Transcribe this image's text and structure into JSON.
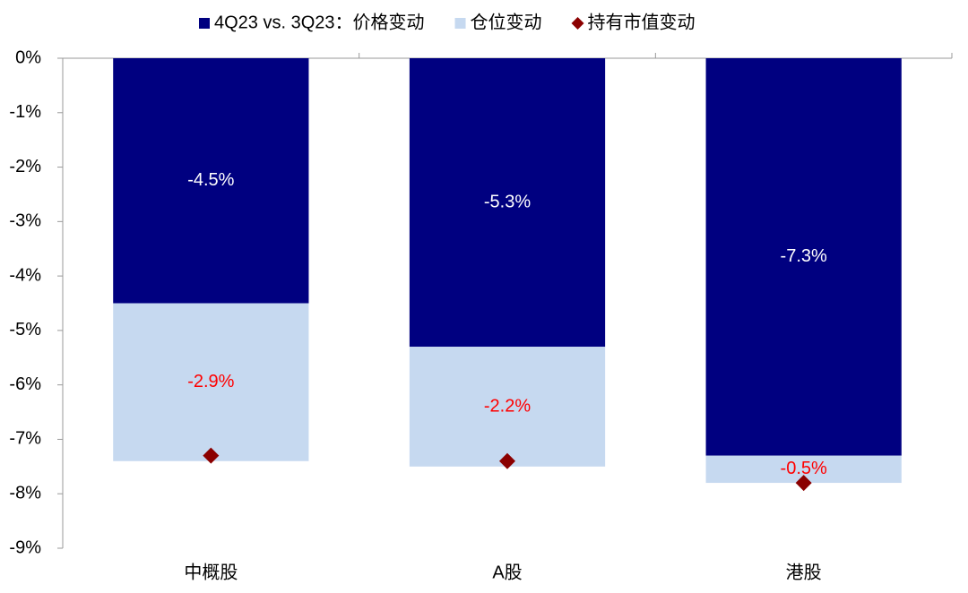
{
  "chart_data": {
    "type": "bar",
    "stacked": true,
    "categories": [
      "中概股",
      "A股",
      "港股"
    ],
    "series": [
      {
        "name": "4Q23 vs. 3Q23：价格变动",
        "color": "#000080",
        "label_color": "#ffffff",
        "values": [
          -4.5,
          -5.3,
          -7.3
        ],
        "value_labels": [
          "-4.5%",
          "-5.3%",
          "-7.3%"
        ]
      },
      {
        "name": "仓位变动",
        "color": "#c6d9f0",
        "label_color": "#ff0000",
        "values": [
          -2.9,
          -2.2,
          -0.5
        ],
        "value_labels": [
          "-2.9%",
          "-2.2%",
          "-0.5%"
        ]
      },
      {
        "name": "持有市值变动",
        "type": "scatter",
        "marker": "diamond",
        "color": "#8b0000",
        "values": [
          -7.3,
          -7.4,
          -7.8
        ]
      }
    ],
    "ylim": [
      -9,
      0
    ],
    "yticks": [
      {
        "value": 0,
        "label": "0%"
      },
      {
        "value": -1,
        "label": "-1%"
      },
      {
        "value": -2,
        "label": "-2%"
      },
      {
        "value": -3,
        "label": "-3%"
      },
      {
        "value": -4,
        "label": "-4%"
      },
      {
        "value": -5,
        "label": "-5%"
      },
      {
        "value": -6,
        "label": "-6%"
      },
      {
        "value": -7,
        "label": "-7%"
      },
      {
        "value": -8,
        "label": "-8%"
      },
      {
        "value": -9,
        "label": "-9%"
      }
    ],
    "grid": false,
    "legend": "top"
  }
}
